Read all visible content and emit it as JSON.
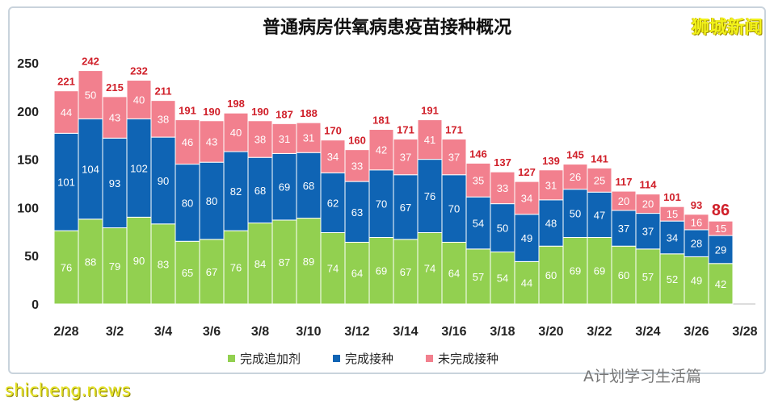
{
  "title": "普通病房供氧病患疫苗接种概况",
  "logo": "狮城新闻",
  "watermark": "A计划学习生活篇",
  "site": "shicheng.news",
  "chart_data": {
    "type": "bar",
    "stacked": true,
    "title": "普通病房供氧病患疫苗接种概况",
    "categories": [
      "2/28",
      "3/1",
      "3/2",
      "3/3",
      "3/4",
      "3/5",
      "3/6",
      "3/7",
      "3/8",
      "3/9",
      "3/10",
      "3/11",
      "3/12",
      "3/13",
      "3/14",
      "3/15",
      "3/16",
      "3/17",
      "3/18",
      "3/19",
      "3/20",
      "3/21",
      "3/22",
      "3/23",
      "3/24",
      "3/25",
      "3/26",
      "3/27"
    ],
    "xticks": [
      "2/28",
      "3/2",
      "3/4",
      "3/6",
      "3/8",
      "3/10",
      "3/12",
      "3/14",
      "3/16",
      "3/18",
      "3/20",
      "3/22",
      "3/24",
      "3/26",
      "3/28"
    ],
    "yticks": [
      0,
      50,
      100,
      150,
      200,
      250
    ],
    "ylim": [
      0,
      250
    ],
    "grid": false,
    "legend": "bottom",
    "series": [
      {
        "name": "完成追加剂",
        "color": "#92d050",
        "values": [
          76,
          88,
          79,
          90,
          83,
          65,
          67,
          76,
          84,
          87,
          89,
          74,
          64,
          69,
          67,
          74,
          64,
          57,
          54,
          44,
          60,
          69,
          69,
          60,
          57,
          52,
          49,
          42
        ]
      },
      {
        "name": "完成接种",
        "color": "#0f64b4",
        "values": [
          101,
          104,
          93,
          102,
          90,
          80,
          80,
          82,
          68,
          69,
          68,
          62,
          63,
          70,
          67,
          76,
          70,
          54,
          50,
          49,
          48,
          50,
          47,
          37,
          37,
          34,
          28,
          29
        ]
      },
      {
        "name": "未完成接种",
        "color": "#f2808e",
        "values": [
          44,
          50,
          43,
          40,
          38,
          46,
          43,
          40,
          38,
          31,
          31,
          34,
          33,
          42,
          37,
          41,
          37,
          35,
          33,
          34,
          31,
          26,
          25,
          20,
          20,
          15,
          16,
          15
        ]
      }
    ],
    "totals": [
      221,
      242,
      215,
      232,
      211,
      191,
      190,
      198,
      190,
      187,
      188,
      170,
      160,
      181,
      171,
      191,
      171,
      146,
      137,
      127,
      139,
      145,
      141,
      117,
      114,
      101,
      93,
      86
    ],
    "total_label_color": "#d0202a"
  }
}
